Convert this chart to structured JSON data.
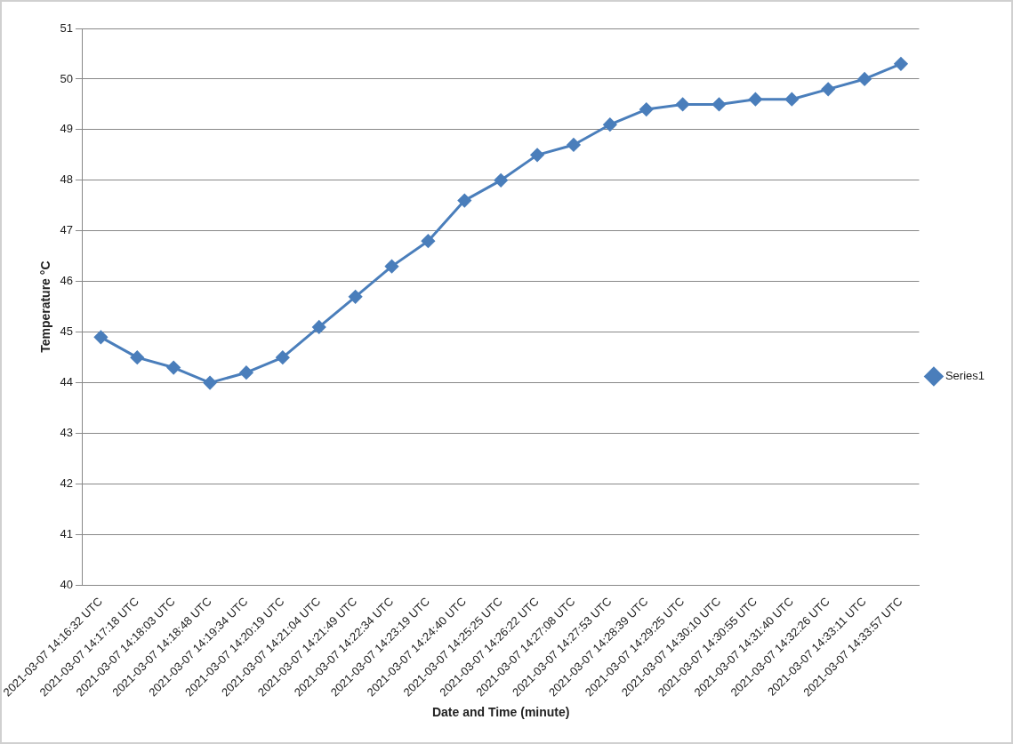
{
  "chart_data": {
    "type": "line",
    "xlabel": "Date and Time (minute)",
    "ylabel": "Temperature °C",
    "categories": [
      "2021-03-07 14:16:32 UTC",
      "2021-03-07 14:17:18 UTC",
      "2021-03-07 14:18:03 UTC",
      "2021-03-07 14:18:48 UTC",
      "2021-03-07 14:19:34 UTC",
      "2021-03-07 14:20:19 UTC",
      "2021-03-07 14:21:04 UTC",
      "2021-03-07 14:21:49 UTC",
      "2021-03-07 14:22:34 UTC",
      "2021-03-07 14:23:19 UTC",
      "2021-03-07 14:24:40 UTC",
      "2021-03-07 14:25:25 UTC",
      "2021-03-07 14:26:22 UTC",
      "2021-03-07 14:27:08 UTC",
      "2021-03-07 14:27:53 UTC",
      "2021-03-07 14:28:39 UTC",
      "2021-03-07 14:29:25 UTC",
      "2021-03-07 14:30:10 UTC",
      "2021-03-07 14:30:55 UTC",
      "2021-03-07 14:31:40 UTC",
      "2021-03-07 14:32:26 UTC",
      "2021-03-07 14:33:11 UTC",
      "2021-03-07 14:33:57 UTC"
    ],
    "series": [
      {
        "name": "Series1",
        "color": "#4a7ebb",
        "values": [
          44.9,
          44.5,
          44.3,
          44.0,
          44.2,
          44.5,
          45.1,
          45.7,
          46.3,
          46.8,
          47.6,
          48.0,
          48.5,
          48.7,
          49.1,
          49.4,
          49.5,
          49.5,
          49.6,
          49.6,
          49.8,
          50.0,
          50.3
        ]
      }
    ],
    "ylim": [
      40,
      51
    ],
    "yticks": [
      40,
      41,
      42,
      43,
      44,
      45,
      46,
      47,
      48,
      49,
      50,
      51
    ],
    "grid": "y",
    "legend": "right",
    "marker": "diamond",
    "line_style": "solid"
  }
}
